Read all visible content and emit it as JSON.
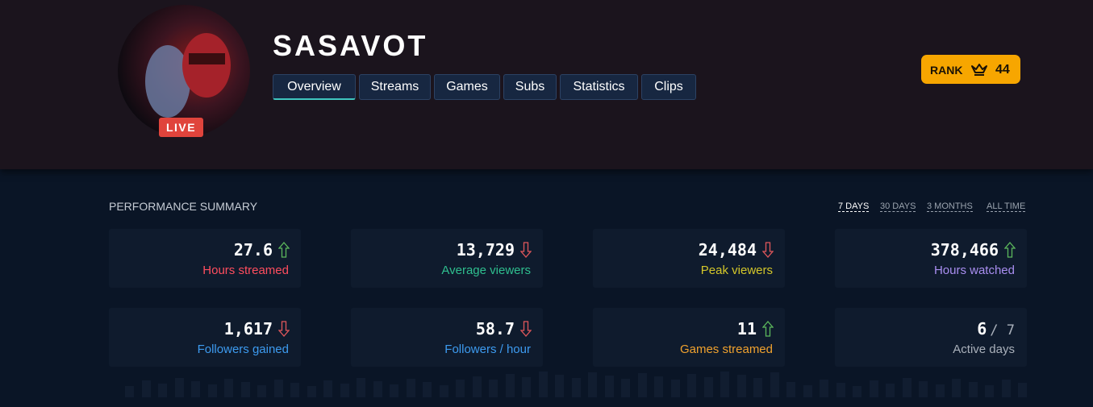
{
  "header": {
    "channel_name": "SASAVOT",
    "live_badge": "LIVE",
    "tabs": [
      "Overview",
      "Streams",
      "Games",
      "Subs",
      "Statistics",
      "Clips"
    ],
    "active_tab": 0,
    "rank_label": "RANK",
    "rank_value": "44"
  },
  "summary": {
    "title": "PERFORMANCE SUMMARY",
    "periods": [
      "7 DAYS",
      "30 DAYS",
      "3 MONTHS",
      "ALL TIME"
    ],
    "active_period": 0,
    "cards": [
      {
        "value": "27.6",
        "label": "Hours streamed",
        "trend": "up",
        "color": "#ff4d5e"
      },
      {
        "value": "13,729",
        "label": "Average viewers",
        "trend": "down",
        "color": "#2fbf8f"
      },
      {
        "value": "24,484",
        "label": "Peak viewers",
        "trend": "down",
        "color": "#d4c72a"
      },
      {
        "value": "378,466",
        "label": "Hours watched",
        "trend": "up",
        "color": "#a98ef0"
      },
      {
        "value": "1,617",
        "label": "Followers gained",
        "trend": "down",
        "color": "#3d9bf0"
      },
      {
        "value": "58.7",
        "label": "Followers / hour",
        "trend": "down",
        "color": "#3d9bf0"
      },
      {
        "value": "11",
        "label": "Games streamed",
        "trend": "up",
        "color": "#f0a22e"
      },
      {
        "value": "6",
        "suffix": "/ 7",
        "label": "Active days",
        "color": "#a9b0ba"
      }
    ]
  }
}
